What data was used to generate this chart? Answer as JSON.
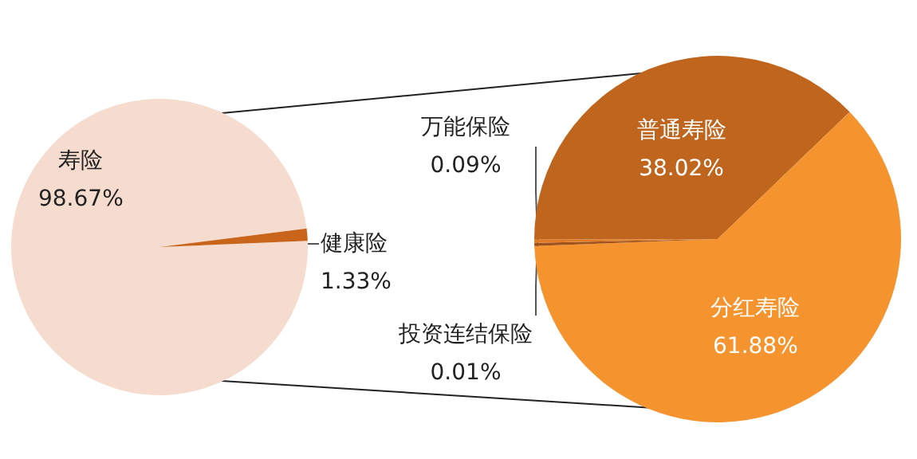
{
  "chart_data": [
    {
      "type": "pie",
      "categories": [
        "寿险",
        "健康险"
      ],
      "values": [
        98.67,
        1.33
      ],
      "colors": [
        "#f5dccf",
        "#c8651a"
      ],
      "value_labels": [
        "98.67%",
        "1.33%"
      ]
    },
    {
      "type": "pie",
      "categories": [
        "普通寿险",
        "分红寿险",
        "万能保险",
        "投资连结保险"
      ],
      "values": [
        38.02,
        61.88,
        0.09,
        0.01
      ],
      "colors": [
        "#c0651e",
        "#f5932e",
        "#a0521a",
        "#e07b24"
      ],
      "value_labels": [
        "38.02%",
        "61.88%",
        "0.09%",
        "0.01%"
      ]
    }
  ]
}
